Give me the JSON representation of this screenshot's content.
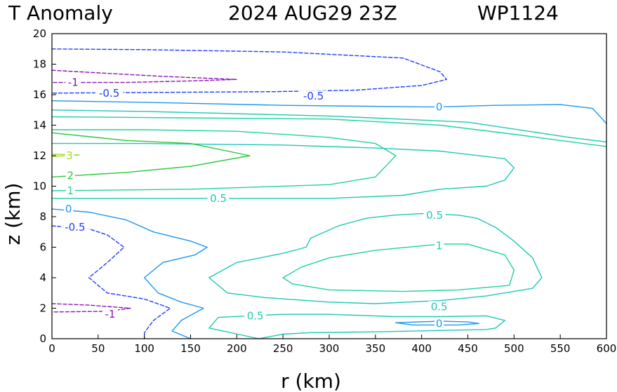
{
  "page": {
    "title_left": "T Anomaly",
    "title_right": "2024 AUG29 23Z",
    "storm_id": "WP1124"
  },
  "colors": {
    "neg1": "#8c14b4",
    "neg05": "#1e3cff",
    "zero": "#1e96f0",
    "pos05": "#1ec8b4",
    "pos1": "#1ed2a0",
    "pos2": "#28c83c",
    "pos3": "#a0dc28"
  },
  "chart_data": {
    "type": "contour",
    "title": "T Anomaly",
    "xlabel": "r (km)",
    "ylabel": "z (km)",
    "xlim": [
      0,
      600
    ],
    "ylim": [
      0,
      20
    ],
    "xticks": [
      0,
      50,
      100,
      150,
      200,
      250,
      300,
      350,
      400,
      450,
      500,
      550,
      600
    ],
    "yticks": [
      0,
      2,
      4,
      6,
      8,
      10,
      12,
      14,
      16,
      18,
      20
    ],
    "contours": [
      {
        "level": -1,
        "label": "-1",
        "color_key": "neg1",
        "dashed": true,
        "points": [
          [
            0,
            17.6
          ],
          [
            60,
            17.4
          ],
          [
            120,
            17.2
          ],
          [
            200,
            17.0
          ],
          [
            150,
            16.9
          ],
          [
            80,
            16.8
          ],
          [
            0,
            16.8
          ]
        ],
        "label_at": [
          23,
          16.8
        ]
      },
      {
        "level": -1,
        "label": "-1",
        "color_key": "neg1",
        "dashed": true,
        "points": [
          [
            0,
            2.3
          ],
          [
            40,
            2.2
          ],
          [
            85,
            2.0
          ],
          [
            60,
            1.8
          ],
          [
            0,
            1.75
          ]
        ],
        "label_at": [
          63,
          1.6
        ]
      },
      {
        "level": -0.5,
        "label": "-0.5",
        "color_key": "neg05",
        "dashed": true,
        "points": [
          [
            0,
            19.0
          ],
          [
            100,
            18.95
          ],
          [
            250,
            18.8
          ],
          [
            380,
            18.4
          ],
          [
            420,
            17.5
          ],
          [
            427,
            17.0
          ],
          [
            400,
            16.6
          ],
          [
            330,
            16.3
          ],
          [
            240,
            16.2
          ],
          [
            120,
            16.15
          ],
          [
            0,
            16.1
          ]
        ],
        "label_at": [
          62,
          16.1
        ],
        "label2_at": [
          283,
          15.9
        ]
      },
      {
        "level": -0.5,
        "label": "-0.5",
        "color_key": "neg05",
        "dashed": true,
        "points": [
          [
            0,
            7.4
          ],
          [
            40,
            7.2
          ],
          [
            60,
            6.8
          ],
          [
            78,
            6.0
          ],
          [
            60,
            5.0
          ],
          [
            40,
            4.0
          ],
          [
            60,
            3.0
          ],
          [
            100,
            2.6
          ],
          [
            128,
            2.0
          ],
          [
            110,
            1.2
          ],
          [
            100,
            0.4
          ],
          [
            100,
            0
          ]
        ],
        "label_at": [
          25,
          7.3
        ]
      },
      {
        "level": 0,
        "label": "0",
        "color_key": "zero",
        "dashed": false,
        "points": [
          [
            0,
            15.6
          ],
          [
            100,
            15.5
          ],
          [
            250,
            15.3
          ],
          [
            400,
            15.2
          ],
          [
            420,
            15.2
          ],
          [
            480,
            15.3
          ],
          [
            550,
            15.35
          ],
          [
            585,
            15.1
          ],
          [
            600,
            14.1
          ]
        ],
        "label_at": [
          419,
          15.2
        ]
      },
      {
        "level": 0,
        "label": "0",
        "color_key": "zero",
        "dashed": false,
        "points": [
          [
            0,
            8.5
          ],
          [
            40,
            8.3
          ],
          [
            80,
            7.8
          ],
          [
            110,
            7.0
          ],
          [
            150,
            6.4
          ],
          [
            168,
            6.0
          ],
          [
            155,
            5.5
          ],
          [
            120,
            5.0
          ],
          [
            100,
            4.0
          ],
          [
            115,
            3.0
          ],
          [
            140,
            2.4
          ],
          [
            164,
            2.0
          ],
          [
            140,
            1.2
          ],
          [
            130,
            0.5
          ],
          [
            150,
            0
          ]
        ],
        "label_at": [
          18,
          8.5
        ]
      },
      {
        "level": 0,
        "label": "0",
        "color_key": "zero",
        "dashed": false,
        "points": [
          [
            372,
            1.05
          ],
          [
            420,
            1.15
          ],
          [
            450,
            1.1
          ],
          [
            462,
            1.0
          ],
          [
            440,
            0.9
          ],
          [
            390,
            0.9
          ],
          [
            372,
            1.05
          ]
        ],
        "label_at": [
          419,
          1.0
        ]
      },
      {
        "level": 0.5,
        "label": "0.5",
        "color_key": "pos05",
        "dashed": false,
        "points": [
          [
            0,
            9.2
          ],
          [
            200,
            9.2
          ],
          [
            300,
            9.2
          ],
          [
            380,
            9.4
          ],
          [
            420,
            9.8
          ],
          [
            470,
            10.0
          ],
          [
            490,
            10.4
          ],
          [
            500,
            11.2
          ],
          [
            490,
            11.8
          ],
          [
            420,
            12.3
          ],
          [
            350,
            12.5
          ],
          [
            250,
            12.7
          ],
          [
            100,
            12.8
          ],
          [
            0,
            12.8
          ]
        ],
        "label_at": [
          180,
          9.2
        ]
      },
      {
        "level": 0.5,
        "label": "0.5",
        "color_key": "pos05",
        "dashed": false,
        "points": [
          [
            0,
            15.0
          ],
          [
            100,
            14.9
          ],
          [
            300,
            14.6
          ],
          [
            450,
            14.2
          ],
          [
            560,
            13.2
          ],
          [
            600,
            12.9
          ]
        ],
        "label_at": [
          -100,
          -100
        ]
      },
      {
        "level": 0.5,
        "label": "0.5",
        "color_key": "pos05",
        "dashed": false,
        "points": [
          [
            275,
            6.0
          ],
          [
            280,
            6.6
          ],
          [
            310,
            7.4
          ],
          [
            340,
            7.9
          ],
          [
            370,
            8.1
          ],
          [
            400,
            8.2
          ],
          [
            440,
            8.1
          ],
          [
            460,
            7.9
          ],
          [
            480,
            7.3
          ],
          [
            500,
            6.4
          ],
          [
            520,
            5.3
          ],
          [
            530,
            4.0
          ],
          [
            520,
            3.3
          ],
          [
            470,
            2.8
          ],
          [
            420,
            2.5
          ],
          [
            350,
            2.3
          ],
          [
            300,
            2.4
          ],
          [
            230,
            2.7
          ],
          [
            190,
            3.0
          ],
          [
            170,
            4.0
          ],
          [
            200,
            5.0
          ],
          [
            250,
            5.6
          ],
          [
            275,
            6.0
          ]
        ],
        "label_at": [
          414,
          8.1
        ],
        "label2_at": [
          419,
          2.1
        ]
      },
      {
        "level": 0.5,
        "label": "0.5",
        "color_key": "pos05",
        "dashed": false,
        "points": [
          [
            224,
            0
          ],
          [
            170,
            0.7
          ],
          [
            180,
            1.4
          ],
          [
            250,
            1.6
          ],
          [
            300,
            1.6
          ],
          [
            370,
            1.45
          ],
          [
            420,
            1.45
          ],
          [
            470,
            1.5
          ],
          [
            490,
            1.2
          ],
          [
            480,
            0.7
          ],
          [
            470,
            0.6
          ],
          [
            350,
            0.45
          ],
          [
            280,
            0.4
          ],
          [
            250,
            0.3
          ],
          [
            224,
            0
          ]
        ],
        "label_at": [
          220,
          1.5
        ]
      },
      {
        "level": 1,
        "label": "1",
        "color_key": "pos1",
        "dashed": false,
        "points": [
          [
            0,
            9.7
          ],
          [
            150,
            9.8
          ],
          [
            300,
            10.1
          ],
          [
            350,
            10.6
          ],
          [
            372,
            12.0
          ],
          [
            350,
            12.8
          ],
          [
            300,
            13.2
          ],
          [
            200,
            13.6
          ],
          [
            100,
            13.7
          ],
          [
            0,
            13.7
          ]
        ],
        "label_at": [
          20,
          9.7
        ]
      },
      {
        "level": 1,
        "label": "1",
        "color_key": "pos1",
        "dashed": false,
        "points": [
          [
            0,
            14.55
          ],
          [
            100,
            14.5
          ],
          [
            300,
            14.4
          ],
          [
            420,
            14.0
          ],
          [
            500,
            13.4
          ],
          [
            550,
            13.0
          ],
          [
            600,
            12.6
          ]
        ],
        "label_at": [
          -100,
          -100
        ]
      },
      {
        "level": 1,
        "label": "1",
        "color_key": "pos1",
        "dashed": false,
        "points": [
          [
            250,
            4.0
          ],
          [
            270,
            4.7
          ],
          [
            300,
            5.3
          ],
          [
            350,
            5.8
          ],
          [
            420,
            6.2
          ],
          [
            450,
            6.2
          ],
          [
            490,
            5.5
          ],
          [
            500,
            4.5
          ],
          [
            495,
            3.5
          ],
          [
            440,
            3.2
          ],
          [
            380,
            3.1
          ],
          [
            300,
            3.2
          ],
          [
            260,
            3.6
          ],
          [
            250,
            4.0
          ]
        ],
        "label_at": [
          419,
          6.1
        ]
      },
      {
        "level": 2,
        "label": "2",
        "color_key": "pos2",
        "dashed": false,
        "points": [
          [
            0,
            10.6
          ],
          [
            80,
            10.9
          ],
          [
            150,
            11.3
          ],
          [
            214,
            12.0
          ],
          [
            150,
            12.8
          ],
          [
            80,
            13.0
          ],
          [
            0,
            13.5
          ]
        ],
        "label_at": [
          20,
          10.7
        ]
      },
      {
        "level": 3,
        "label": "3",
        "color_key": "pos3",
        "dashed": false,
        "points": [
          [
            0,
            12.1
          ],
          [
            30,
            12.05
          ],
          [
            0,
            11.95
          ]
        ],
        "label_at": [
          19,
          12.0
        ]
      }
    ]
  }
}
